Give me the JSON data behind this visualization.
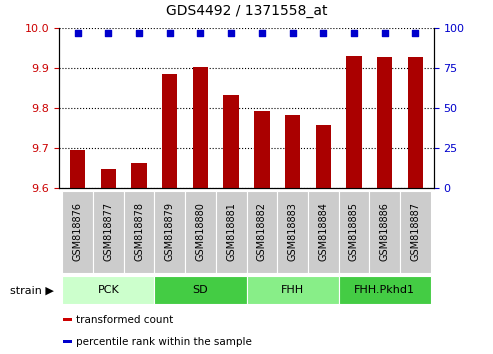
{
  "title": "GDS4492 / 1371558_at",
  "samples": [
    "GSM818876",
    "GSM818877",
    "GSM818878",
    "GSM818879",
    "GSM818880",
    "GSM818881",
    "GSM818882",
    "GSM818883",
    "GSM818884",
    "GSM818885",
    "GSM818886",
    "GSM818887"
  ],
  "bar_values": [
    9.695,
    9.648,
    9.662,
    9.885,
    9.902,
    9.832,
    9.793,
    9.782,
    9.758,
    9.93,
    9.928,
    9.927
  ],
  "percentile_values": [
    97,
    97,
    97,
    97,
    97,
    97,
    97,
    97,
    97,
    97,
    97,
    97
  ],
  "bar_color": "#aa0000",
  "percentile_color": "#0000cc",
  "ylim_left": [
    9.6,
    10.0
  ],
  "ylim_right": [
    0,
    100
  ],
  "yticks_left": [
    9.6,
    9.7,
    9.8,
    9.9,
    10.0
  ],
  "yticks_right": [
    0,
    25,
    50,
    75,
    100
  ],
  "group_data": [
    {
      "label": "PCK",
      "start": 0,
      "end": 2,
      "color": "#ccffcc"
    },
    {
      "label": "SD",
      "start": 3,
      "end": 5,
      "color": "#44cc44"
    },
    {
      "label": "FHH",
      "start": 6,
      "end": 8,
      "color": "#88ee88"
    },
    {
      "label": "FHH.Pkhd1",
      "start": 9,
      "end": 11,
      "color": "#44cc44"
    }
  ],
  "legend_items": [
    {
      "label": "transformed count",
      "color": "#cc0000"
    },
    {
      "label": "percentile rank within the sample",
      "color": "#0000cc"
    }
  ],
  "background_color": "#ffffff",
  "tick_bg_color": "#cccccc",
  "bar_color_left_ytick": "#cc0000",
  "right_ytick_color": "#0000cc"
}
